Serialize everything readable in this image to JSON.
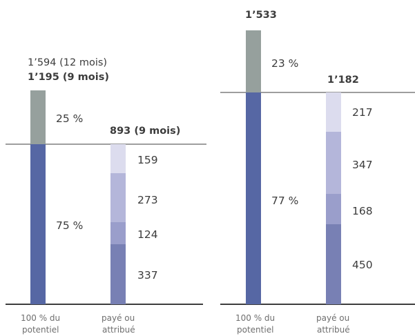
{
  "colors": {
    "grey_bar": "#96a09d",
    "blue_bar": "#5667a4",
    "seg_dark": "#7880b4",
    "seg_mid": "#9a9ecb",
    "seg_light": "#b4b6da",
    "seg_lightest": "#dcdcee",
    "axis": "#3c3c3c"
  },
  "chart_data": [
    {
      "type": "bar",
      "categories": [
        "100% du potentiel",
        "payé ou attribué"
      ],
      "top_label_line1": "1’594 (12 mois)",
      "top_label_line2": "1’195 (9 mois)",
      "total_potential": 1195,
      "potential_split": [
        {
          "label": "75 %",
          "percent": 75
        },
        {
          "label": "25 %",
          "percent": 25
        }
      ],
      "paid_total_label": "893 (9 mois)",
      "paid_total": 893,
      "paid_segments": [
        {
          "value": 337,
          "label": "337"
        },
        {
          "value": 124,
          "label": "124"
        },
        {
          "value": 273,
          "label": "273"
        },
        {
          "value": 159,
          "label": "159"
        }
      ],
      "x_label_1a": "100 % du",
      "x_label_1b": "potentiel",
      "x_label_2a": "payé ou",
      "x_label_2b": "attribué"
    },
    {
      "type": "bar",
      "categories": [
        "100% du potentiel",
        "payé ou attribué"
      ],
      "top_label_line2": "1’533",
      "total_potential": 1533,
      "potential_split": [
        {
          "label": "77 %",
          "percent": 77
        },
        {
          "label": "23 %",
          "percent": 23
        }
      ],
      "paid_total_label": "1’182",
      "paid_total": 1182,
      "paid_segments": [
        {
          "value": 450,
          "label": "450"
        },
        {
          "value": 168,
          "label": "168"
        },
        {
          "value": 347,
          "label": "347"
        },
        {
          "value": 217,
          "label": "217"
        }
      ],
      "x_label_1a": "100 % du",
      "x_label_1b": "potentiel",
      "x_label_2a": "payé ou",
      "x_label_2b": "attribué"
    }
  ]
}
